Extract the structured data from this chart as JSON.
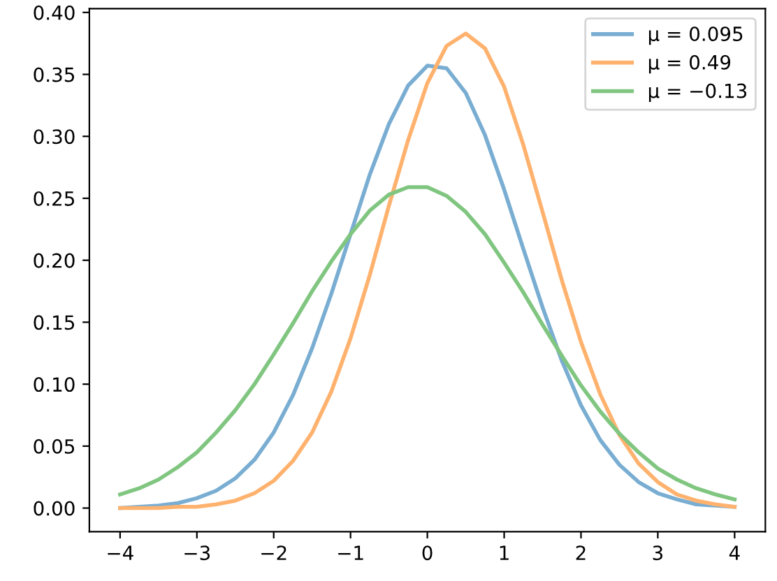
{
  "chart_data": {
    "type": "line",
    "x": [
      -4,
      -3.75,
      -3.5,
      -3.25,
      -3,
      -2.75,
      -2.5,
      -2.25,
      -2,
      -1.75,
      -1.5,
      -1.25,
      -1,
      -0.75,
      -0.5,
      -0.25,
      0,
      0.25,
      0.5,
      0.75,
      1,
      1.25,
      1.5,
      1.75,
      2,
      2.25,
      2.5,
      2.75,
      3,
      3.25,
      3.5,
      3.75,
      4
    ],
    "series": [
      {
        "name": "μ = 0.095",
        "color": "#79add2",
        "values": [
          0.0,
          0.001,
          0.002,
          0.004,
          0.008,
          0.014,
          0.024,
          0.039,
          0.061,
          0.091,
          0.129,
          0.173,
          0.221,
          0.269,
          0.31,
          0.341,
          0.357,
          0.355,
          0.335,
          0.301,
          0.257,
          0.209,
          0.162,
          0.119,
          0.083,
          0.055,
          0.035,
          0.021,
          0.012,
          0.007,
          0.003,
          0.002,
          0.001
        ]
      },
      {
        "name": "μ = 0.49",
        "color": "#ffb26e",
        "values": [
          0.0,
          0.0,
          0.0,
          0.001,
          0.001,
          0.003,
          0.006,
          0.012,
          0.022,
          0.038,
          0.061,
          0.094,
          0.137,
          0.188,
          0.244,
          0.297,
          0.343,
          0.373,
          0.383,
          0.371,
          0.34,
          0.293,
          0.239,
          0.184,
          0.134,
          0.092,
          0.059,
          0.036,
          0.021,
          0.011,
          0.006,
          0.003,
          0.001
        ]
      },
      {
        "name": "μ = −0.13",
        "color": "#80c680",
        "values": [
          0.011,
          0.016,
          0.023,
          0.033,
          0.045,
          0.061,
          0.079,
          0.1,
          0.124,
          0.149,
          0.175,
          0.199,
          0.221,
          0.24,
          0.253,
          0.259,
          0.259,
          0.252,
          0.239,
          0.221,
          0.198,
          0.174,
          0.148,
          0.123,
          0.099,
          0.078,
          0.06,
          0.045,
          0.032,
          0.023,
          0.016,
          0.011,
          0.007
        ]
      }
    ],
    "xlim": [
      -4.4,
      4.4
    ],
    "xticks": [
      {
        "value": -4,
        "label": "−4"
      },
      {
        "value": -3,
        "label": "−3"
      },
      {
        "value": -2,
        "label": "−2"
      },
      {
        "value": -1,
        "label": "−1"
      },
      0,
      1,
      2,
      3,
      4
    ],
    "ylim": [
      -0.019,
      0.403
    ],
    "yticks": [
      {
        "value": 0,
        "label": "0.00"
      },
      {
        "value": 0.05,
        "label": "0.05"
      },
      {
        "value": 0.1,
        "label": "0.10"
      },
      {
        "value": 0.15,
        "label": "0.15"
      },
      {
        "value": 0.2,
        "label": "0.20"
      },
      {
        "value": 0.25,
        "label": "0.25"
      },
      {
        "value": 0.3,
        "label": "0.30"
      },
      {
        "value": 0.35,
        "label": "0.35"
      },
      {
        "value": 0.4,
        "label": "0.40"
      }
    ],
    "grid": false,
    "legend": "top right",
    "line_style": "solid",
    "marker": "none"
  }
}
